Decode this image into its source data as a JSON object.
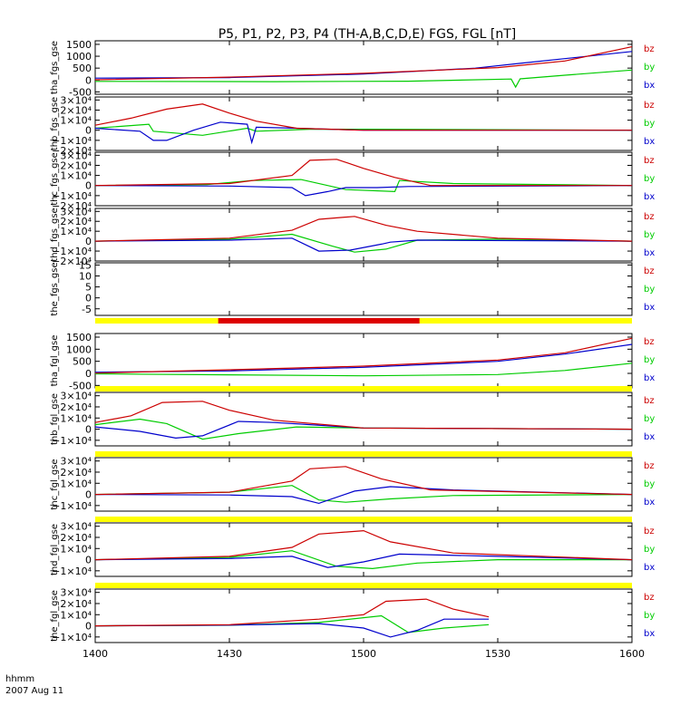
{
  "title": "P5, P1, P2, P3, P4 (TH-A,B,C,D,E) FGS, FGL [nT]",
  "footer": {
    "time_label": "hhmm",
    "date_label": "2007 Aug 11"
  },
  "colors": {
    "bz": "#cc0000",
    "by": "#00cc00",
    "bx": "#0000cc",
    "bar_yellow": "#ffff00",
    "bar_red": "#dd0000"
  },
  "chart_data": {
    "type": "line",
    "x_axis": {
      "tick_labels": [
        "1400",
        "1430",
        "1500",
        "1530",
        "1600"
      ],
      "range_minutes": [
        0,
        120
      ]
    },
    "legend_labels": [
      "bz",
      "by",
      "bx"
    ],
    "panels": [
      {
        "ylabel": "tha_fgs_gse",
        "yticks": [
          "1500",
          "1000",
          "500",
          "0",
          "-500"
        ],
        "ytick_values": [
          1500,
          1000,
          500,
          0,
          -500
        ],
        "ylim": [
          -600,
          1650
        ],
        "series": {
          "bz": [
            [
              0,
              10
            ],
            [
              30,
              120
            ],
            [
              60,
              280
            ],
            [
              90,
              520
            ],
            [
              105,
              800
            ],
            [
              120,
              1400
            ]
          ],
          "by": [
            [
              0,
              -60
            ],
            [
              40,
              -70
            ],
            [
              70,
              -50
            ],
            [
              93,
              40
            ],
            [
              94,
              -300
            ],
            [
              95,
              50
            ],
            [
              105,
              200
            ],
            [
              120,
              420
            ]
          ],
          "bx": [
            [
              0,
              80
            ],
            [
              30,
              100
            ],
            [
              60,
              250
            ],
            [
              85,
              500
            ],
            [
              95,
              700
            ],
            [
              105,
              900
            ],
            [
              120,
              1200
            ]
          ]
        }
      },
      {
        "ylabel": "thb_fgs_gse",
        "yticks": [
          "3×10⁴",
          "2×10⁴",
          "1×10⁴",
          "0",
          "−1×10⁴",
          "−2×10⁴"
        ],
        "ytick_values": [
          30000,
          20000,
          10000,
          0,
          -10000,
          -20000
        ],
        "ylim": [
          -20000,
          33000
        ],
        "series": {
          "bz": [
            [
              0,
              5000
            ],
            [
              8,
              12000
            ],
            [
              16,
              21000
            ],
            [
              24,
              26000
            ],
            [
              30,
              17000
            ],
            [
              36,
              9000
            ],
            [
              45,
              2000
            ],
            [
              60,
              0
            ],
            [
              120,
              0
            ]
          ],
          "by": [
            [
              0,
              2000
            ],
            [
              12,
              6000
            ],
            [
              13,
              -1000
            ],
            [
              24,
              -5000
            ],
            [
              34,
              2000
            ],
            [
              36,
              -1000
            ],
            [
              48,
              1000
            ],
            [
              60,
              1000
            ],
            [
              120,
              0
            ]
          ],
          "bx": [
            [
              0,
              2000
            ],
            [
              10,
              -1000
            ],
            [
              13,
              -10000
            ],
            [
              16,
              -10000
            ],
            [
              22,
              0
            ],
            [
              28,
              8000
            ],
            [
              34,
              6000
            ],
            [
              35,
              -12000
            ],
            [
              36,
              3000
            ],
            [
              45,
              2000
            ],
            [
              60,
              0
            ],
            [
              120,
              0
            ]
          ]
        }
      },
      {
        "ylabel": "thc_fgs_gse",
        "yticks": [
          "3×10⁴",
          "2×10⁴",
          "1×10⁴",
          "0",
          "−1×10⁴",
          "−2×10⁴"
        ],
        "ytick_values": [
          30000,
          20000,
          10000,
          0,
          -10000,
          -20000
        ],
        "ylim": [
          -20000,
          33000
        ],
        "series": {
          "bz": [
            [
              0,
              0
            ],
            [
              30,
              2000
            ],
            [
              44,
              10000
            ],
            [
              48,
              25000
            ],
            [
              54,
              26000
            ],
            [
              60,
              17000
            ],
            [
              67,
              8000
            ],
            [
              75,
              0
            ],
            [
              120,
              0
            ]
          ],
          "by": [
            [
              0,
              0
            ],
            [
              25,
              1000
            ],
            [
              35,
              5000
            ],
            [
              46,
              6000
            ],
            [
              56,
              -4000
            ],
            [
              67,
              -6000
            ],
            [
              68,
              5000
            ],
            [
              80,
              2000
            ],
            [
              120,
              0
            ]
          ],
          "bx": [
            [
              0,
              0
            ],
            [
              30,
              -500
            ],
            [
              44,
              -2000
            ],
            [
              47,
              -10000
            ],
            [
              52,
              -6000
            ],
            [
              56,
              -2000
            ],
            [
              63,
              -2000
            ],
            [
              70,
              -1000
            ],
            [
              120,
              0
            ]
          ]
        }
      },
      {
        "ylabel": "thd_fgs_gse",
        "yticks": [
          "3×10⁴",
          "2×10⁴",
          "1×10⁴",
          "0",
          "−1×10⁴",
          "−2×10⁴"
        ],
        "ytick_values": [
          30000,
          20000,
          10000,
          0,
          -10000,
          -20000
        ],
        "ylim": [
          -20000,
          33000
        ],
        "series": {
          "bz": [
            [
              0,
              0
            ],
            [
              30,
              3000
            ],
            [
              44,
              11000
            ],
            [
              50,
              22000
            ],
            [
              58,
              25000
            ],
            [
              65,
              16000
            ],
            [
              72,
              10000
            ],
            [
              90,
              3000
            ],
            [
              120,
              0
            ]
          ],
          "by": [
            [
              0,
              0
            ],
            [
              30,
              2000
            ],
            [
              44,
              7000
            ],
            [
              53,
              -5000
            ],
            [
              58,
              -11000
            ],
            [
              65,
              -8000
            ],
            [
              72,
              1000
            ],
            [
              90,
              2000
            ],
            [
              120,
              0
            ]
          ],
          "bx": [
            [
              0,
              0
            ],
            [
              30,
              1000
            ],
            [
              44,
              3000
            ],
            [
              50,
              -10000
            ],
            [
              57,
              -9000
            ],
            [
              64,
              -3000
            ],
            [
              66,
              -1000
            ],
            [
              72,
              1000
            ],
            [
              120,
              0
            ]
          ]
        }
      },
      {
        "ylabel": "the_fgs_gse",
        "yticks": [
          "15",
          "10",
          "5",
          "0",
          "-5"
        ],
        "ytick_values": [
          15,
          10,
          5,
          0,
          -5
        ],
        "ylim": [
          -8,
          16
        ],
        "series": {
          "bz": [],
          "by": [],
          "bx": []
        }
      },
      {
        "ylabel": "tha_fgl_gse",
        "yticks": [
          "1500",
          "1000",
          "500",
          "0",
          "-500"
        ],
        "ytick_values": [
          1500,
          1000,
          500,
          0,
          -500
        ],
        "ylim": [
          -600,
          1650
        ],
        "series": {
          "bz": [
            [
              0,
              10
            ],
            [
              30,
              150
            ],
            [
              60,
              300
            ],
            [
              90,
              550
            ],
            [
              105,
              850
            ],
            [
              120,
              1450
            ]
          ],
          "by": [
            [
              0,
              -20
            ],
            [
              30,
              -60
            ],
            [
              60,
              -100
            ],
            [
              90,
              -50
            ],
            [
              105,
              120
            ],
            [
              120,
              420
            ]
          ],
          "bx": [
            [
              0,
              50
            ],
            [
              30,
              100
            ],
            [
              60,
              250
            ],
            [
              90,
              500
            ],
            [
              105,
              800
            ],
            [
              120,
              1200
            ]
          ]
        }
      },
      {
        "ylabel": "thb_fgl_gse",
        "yticks": [
          "3×10⁴",
          "2×10⁴",
          "1×10⁴",
          "0",
          "−1×10⁴"
        ],
        "ytick_values": [
          30000,
          20000,
          10000,
          0,
          -10000
        ],
        "ylim": [
          -15000,
          33000
        ],
        "series": {
          "bz": [
            [
              0,
              6000
            ],
            [
              8,
              12000
            ],
            [
              15,
              24000
            ],
            [
              24,
              25000
            ],
            [
              30,
              17000
            ],
            [
              40,
              8000
            ],
            [
              60,
              1000
            ],
            [
              120,
              0
            ]
          ],
          "by": [
            [
              0,
              4000
            ],
            [
              10,
              9000
            ],
            [
              16,
              5000
            ],
            [
              24,
              -9000
            ],
            [
              32,
              -4000
            ],
            [
              45,
              2000
            ],
            [
              60,
              1000
            ],
            [
              120,
              0
            ]
          ],
          "bx": [
            [
              0,
              2000
            ],
            [
              10,
              -2000
            ],
            [
              18,
              -8000
            ],
            [
              24,
              -6000
            ],
            [
              32,
              7000
            ],
            [
              40,
              6000
            ],
            [
              60,
              1000
            ],
            [
              120,
              0
            ]
          ]
        }
      },
      {
        "ylabel": "thc_fgl_gse",
        "yticks": [
          "3×10⁴",
          "2×10⁴",
          "1×10⁴",
          "0",
          "−1×10⁴"
        ],
        "ytick_values": [
          30000,
          20000,
          10000,
          0,
          -10000
        ],
        "ylim": [
          -15000,
          33000
        ],
        "series": {
          "bz": [
            [
              0,
              0
            ],
            [
              30,
              2000
            ],
            [
              44,
              12000
            ],
            [
              48,
              23000
            ],
            [
              56,
              25000
            ],
            [
              64,
              14000
            ],
            [
              75,
              4000
            ],
            [
              120,
              0
            ]
          ],
          "by": [
            [
              0,
              0
            ],
            [
              30,
              2000
            ],
            [
              44,
              8000
            ],
            [
              50,
              -5000
            ],
            [
              56,
              -7000
            ],
            [
              66,
              -4000
            ],
            [
              80,
              -1000
            ],
            [
              120,
              0
            ]
          ],
          "bx": [
            [
              0,
              0
            ],
            [
              30,
              -500
            ],
            [
              44,
              -2000
            ],
            [
              50,
              -8000
            ],
            [
              58,
              3000
            ],
            [
              66,
              7000
            ],
            [
              80,
              4000
            ],
            [
              120,
              0
            ]
          ]
        }
      },
      {
        "ylabel": "thd_fgl_gse",
        "yticks": [
          "3×10⁴",
          "2×10⁴",
          "1×10⁴",
          "0",
          "−1×10⁴"
        ],
        "ytick_values": [
          30000,
          20000,
          10000,
          0,
          -10000
        ],
        "ylim": [
          -15000,
          33000
        ],
        "series": {
          "bz": [
            [
              0,
              0
            ],
            [
              30,
              3000
            ],
            [
              44,
              11000
            ],
            [
              50,
              23000
            ],
            [
              60,
              26000
            ],
            [
              66,
              16000
            ],
            [
              80,
              6000
            ],
            [
              120,
              0
            ]
          ],
          "by": [
            [
              0,
              0
            ],
            [
              30,
              2000
            ],
            [
              44,
              8000
            ],
            [
              54,
              -6000
            ],
            [
              62,
              -8000
            ],
            [
              72,
              -3000
            ],
            [
              90,
              0
            ],
            [
              120,
              0
            ]
          ],
          "bx": [
            [
              0,
              0
            ],
            [
              30,
              1000
            ],
            [
              44,
              3000
            ],
            [
              52,
              -7000
            ],
            [
              60,
              -2000
            ],
            [
              68,
              5000
            ],
            [
              90,
              3000
            ],
            [
              120,
              0
            ]
          ]
        }
      },
      {
        "ylabel": "the_fgl_gse",
        "yticks": [
          "3×10⁴",
          "2×10⁴",
          "1×10⁴",
          "0",
          "−1×10⁴"
        ],
        "ytick_values": [
          30000,
          20000,
          10000,
          0,
          -10000
        ],
        "ylim": [
          -15000,
          33000
        ],
        "series": {
          "bz": [
            [
              0,
              0
            ],
            [
              30,
              1000
            ],
            [
              50,
              6000
            ],
            [
              60,
              10000
            ],
            [
              65,
              22000
            ],
            [
              74,
              24000
            ],
            [
              80,
              15000
            ],
            [
              88,
              8000
            ]
          ],
          "by": [
            [
              0,
              0
            ],
            [
              30,
              500
            ],
            [
              50,
              3000
            ],
            [
              64,
              9000
            ],
            [
              70,
              -6000
            ],
            [
              78,
              -2000
            ],
            [
              88,
              1000
            ]
          ],
          "bx": [
            [
              0,
              0
            ],
            [
              30,
              600
            ],
            [
              50,
              2000
            ],
            [
              60,
              -2000
            ],
            [
              66,
              -10000
            ],
            [
              72,
              -4000
            ],
            [
              78,
              6000
            ],
            [
              88,
              6000
            ]
          ]
        }
      }
    ]
  }
}
